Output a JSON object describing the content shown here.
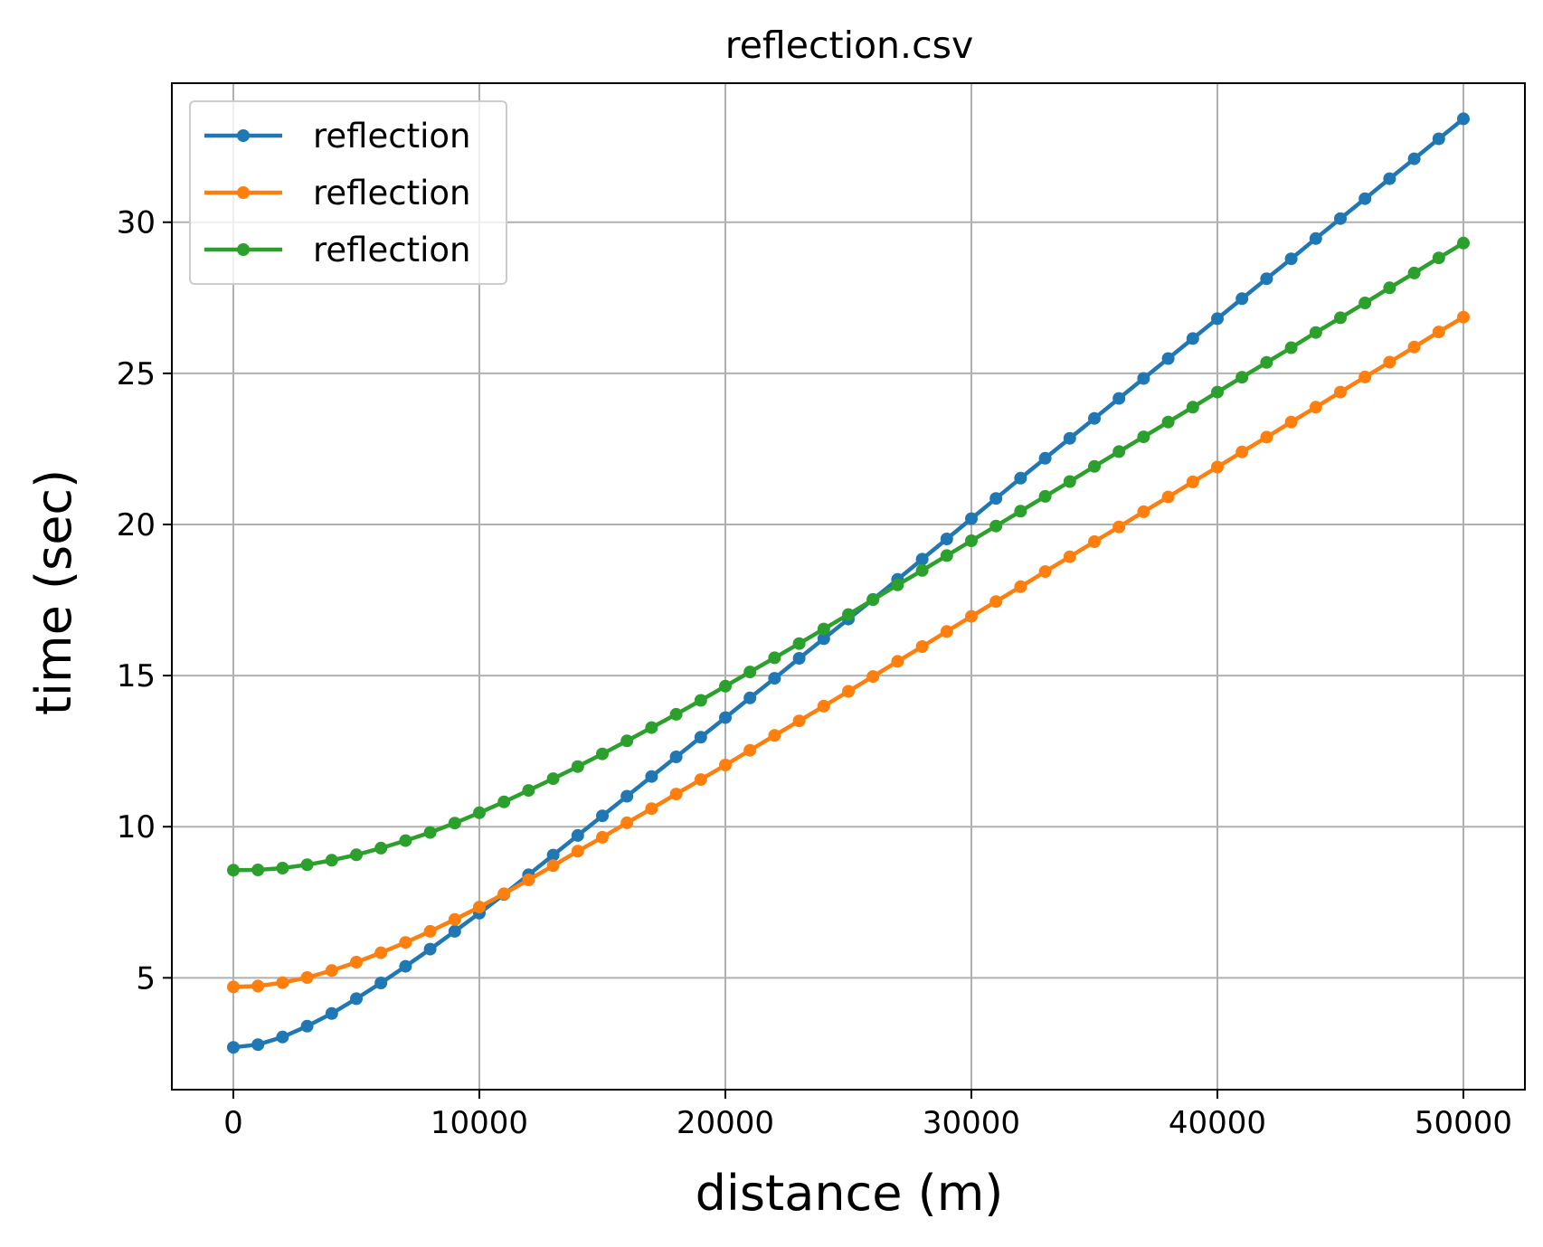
{
  "chart_data": {
    "type": "line",
    "title": "reflection.csv",
    "xlabel": "distance (m)",
    "ylabel": "time (sec)",
    "xlim": [
      -2500,
      52500
    ],
    "ylim": [
      1.3,
      34.6
    ],
    "xticks": [
      0,
      10000,
      20000,
      30000,
      40000,
      50000
    ],
    "yticks": [
      5,
      10,
      15,
      20,
      25,
      30
    ],
    "grid": true,
    "legend": "top-left",
    "x": [
      0,
      1000,
      2000,
      3000,
      4000,
      5000,
      6000,
      7000,
      8000,
      9000,
      10000,
      11000,
      12000,
      13000,
      14000,
      15000,
      16000,
      17000,
      18000,
      19000,
      20000,
      21000,
      22000,
      23000,
      24000,
      25000,
      26000,
      27000,
      28000,
      29000,
      30000,
      31000,
      32000,
      33000,
      34000,
      35000,
      36000,
      37000,
      38000,
      39000,
      40000,
      41000,
      42000,
      43000,
      44000,
      45000,
      46000,
      47000,
      48000,
      49000,
      50000
    ],
    "series": [
      {
        "name": "reflection",
        "color": "#1f77b4",
        "values": [
          2.7,
          2.79,
          3.04,
          3.4,
          3.82,
          4.31,
          4.83,
          5.38,
          5.95,
          6.54,
          7.14,
          7.76,
          8.41,
          9.06,
          9.71,
          10.36,
          11.01,
          11.66,
          12.31,
          12.96,
          13.61,
          14.26,
          14.91,
          15.57,
          16.22,
          16.87,
          17.52,
          18.18,
          18.85,
          19.52,
          20.19,
          20.86,
          21.53,
          22.19,
          22.85,
          23.51,
          24.17,
          24.83,
          25.49,
          26.15,
          26.81,
          27.47,
          28.13,
          28.79,
          29.46,
          30.12,
          30.78,
          31.44,
          32.1,
          32.76,
          33.42
        ]
      },
      {
        "name": "reflection",
        "color": "#ff7f0e",
        "values": [
          4.7,
          4.73,
          4.84,
          5.01,
          5.24,
          5.52,
          5.83,
          6.17,
          6.54,
          6.93,
          7.34,
          7.78,
          8.24,
          8.71,
          9.19,
          9.65,
          10.13,
          10.6,
          11.08,
          11.56,
          12.04,
          12.53,
          13.02,
          13.5,
          13.99,
          14.48,
          14.97,
          15.47,
          15.96,
          16.46,
          16.96,
          17.45,
          17.94,
          18.44,
          18.93,
          19.43,
          19.92,
          20.42,
          20.91,
          21.41,
          21.9,
          22.4,
          22.89,
          23.39,
          23.88,
          24.38,
          24.88,
          25.37,
          25.87,
          26.37,
          26.86
        ]
      },
      {
        "name": "reflection",
        "color": "#2ca02c",
        "values": [
          8.56,
          8.57,
          8.63,
          8.74,
          8.89,
          9.07,
          9.29,
          9.54,
          9.81,
          10.12,
          10.46,
          10.82,
          11.2,
          11.59,
          11.99,
          12.41,
          12.84,
          13.28,
          13.72,
          14.18,
          14.65,
          15.12,
          15.59,
          16.06,
          16.54,
          17.02,
          17.51,
          18.0,
          18.48,
          18.97,
          19.46,
          19.95,
          20.44,
          20.93,
          21.42,
          21.92,
          22.41,
          22.9,
          23.39,
          23.88,
          24.38,
          24.87,
          25.36,
          25.85,
          26.35,
          26.84,
          27.33,
          27.83,
          28.32,
          28.82,
          29.31
        ]
      }
    ]
  }
}
